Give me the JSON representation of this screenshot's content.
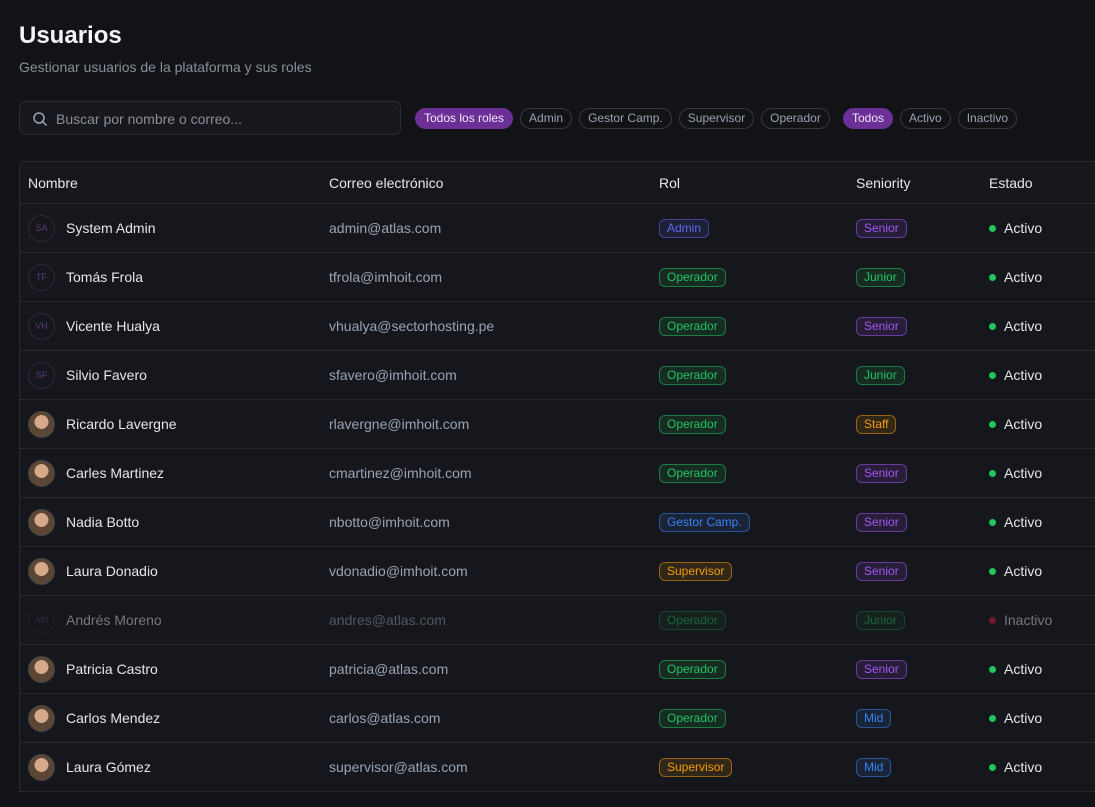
{
  "header": {
    "title": "Usuarios",
    "subtitle": "Gestionar usuarios de la plataforma y sus roles"
  },
  "search": {
    "placeholder": "Buscar por nombre o correo..."
  },
  "role_filters": [
    {
      "label": "Todos los roles",
      "active": true
    },
    {
      "label": "Admin",
      "active": false
    },
    {
      "label": "Gestor Camp.",
      "active": false
    },
    {
      "label": "Supervisor",
      "active": false
    },
    {
      "label": "Operador",
      "active": false
    }
  ],
  "status_filters": [
    {
      "label": "Todos",
      "active": true
    },
    {
      "label": "Activo",
      "active": false
    },
    {
      "label": "Inactivo",
      "active": false
    }
  ],
  "table": {
    "columns": [
      "Nombre",
      "Correo electrónico",
      "Rol",
      "Seniority",
      "Estado"
    ],
    "rows": [
      {
        "initials": "SA",
        "name": "System Admin",
        "email": "admin@atlas.com",
        "role": {
          "label": "Admin",
          "color": "#6366f1"
        },
        "seniority": {
          "label": "Senior",
          "color": "#a855f7"
        },
        "status": {
          "label": "Activo",
          "color": "#22c55e"
        }
      },
      {
        "initials": "TF",
        "name": "Tomás Frola",
        "email": "tfrola@imhoit.com",
        "role": {
          "label": "Operador",
          "color": "#22c55e"
        },
        "seniority": {
          "label": "Junior",
          "color": "#22c55e"
        },
        "status": {
          "label": "Activo",
          "color": "#22c55e"
        }
      },
      {
        "initials": "VH",
        "name": "Vicente Hualya",
        "email": "vhualya@sectorhosting.pe",
        "role": {
          "label": "Operador",
          "color": "#22c55e"
        },
        "seniority": {
          "label": "Senior",
          "color": "#a855f7"
        },
        "status": {
          "label": "Activo",
          "color": "#22c55e"
        }
      },
      {
        "initials": "SF",
        "name": "Silvio Favero",
        "email": "sfavero@imhoit.com",
        "role": {
          "label": "Operador",
          "color": "#22c55e"
        },
        "seniority": {
          "label": "Junior",
          "color": "#22c55e"
        },
        "status": {
          "label": "Activo",
          "color": "#22c55e"
        }
      },
      {
        "name": "Ricardo Lavergne",
        "email": "rlavergne@imhoit.com",
        "role": {
          "label": "Operador",
          "color": "#22c55e"
        },
        "seniority": {
          "label": "Staff",
          "color": "#f59e0b"
        },
        "status": {
          "label": "Activo",
          "color": "#22c55e"
        }
      },
      {
        "name": "Carles Martinez",
        "email": "cmartinez@imhoit.com",
        "role": {
          "label": "Operador",
          "color": "#22c55e"
        },
        "seniority": {
          "label": "Senior",
          "color": "#a855f7"
        },
        "status": {
          "label": "Activo",
          "color": "#22c55e"
        }
      },
      {
        "name": "Nadia Botto",
        "email": "nbotto@imhoit.com",
        "role": {
          "label": "Gestor Camp.",
          "color": "#3b82f6"
        },
        "seniority": {
          "label": "Senior",
          "color": "#a855f7"
        },
        "status": {
          "label": "Activo",
          "color": "#22c55e"
        }
      },
      {
        "name": "Laura Donadio",
        "email": "vdonadio@imhoit.com",
        "role": {
          "label": "Supervisor",
          "color": "#f59e0b"
        },
        "seniority": {
          "label": "Senior",
          "color": "#a855f7"
        },
        "status": {
          "label": "Activo",
          "color": "#22c55e"
        }
      },
      {
        "initials": "AM",
        "name": "Andrés Moreno",
        "email": "andres@atlas.com",
        "role": {
          "label": "Operador",
          "color": "#22c55e"
        },
        "seniority": {
          "label": "Junior",
          "color": "#22c55e"
        },
        "status": {
          "label": "Inactivo",
          "color": "#e11d48"
        }
      },
      {
        "name": "Patricia Castro",
        "email": "patricia@atlas.com",
        "role": {
          "label": "Operador",
          "color": "#22c55e"
        },
        "seniority": {
          "label": "Senior",
          "color": "#a855f7"
        },
        "status": {
          "label": "Activo",
          "color": "#22c55e"
        }
      },
      {
        "name": "Carlos Mendez",
        "email": "carlos@atlas.com",
        "role": {
          "label": "Operador",
          "color": "#22c55e"
        },
        "seniority": {
          "label": "Mid",
          "color": "#3b82f6"
        },
        "status": {
          "label": "Activo",
          "color": "#22c55e"
        }
      },
      {
        "name": "Laura Gómez",
        "email": "supervisor@atlas.com",
        "role": {
          "label": "Supervisor",
          "color": "#f59e0b"
        },
        "seniority": {
          "label": "Mid",
          "color": "#3b82f6"
        },
        "status": {
          "label": "Activo",
          "color": "#22c55e"
        }
      }
    ]
  }
}
